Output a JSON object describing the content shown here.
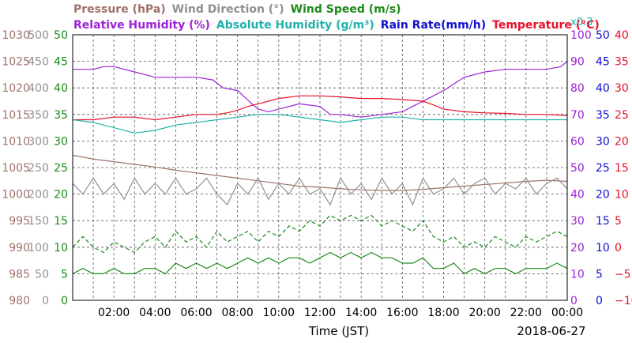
{
  "chart_data": {
    "type": "line",
    "title_row1": [
      {
        "text": "Pressure (hPa)",
        "color": "#A0706A"
      },
      {
        "text": "Wind Direction (°)",
        "color": "#909090"
      },
      {
        "text": "Wind Speed (m/s)",
        "color": "#1A8A1A"
      }
    ],
    "title_row2": [
      {
        "text": "Relative Humidity (%)",
        "color": "#9B22D6"
      },
      {
        "text": "Absolute Humidity (g/m³)",
        "color": "#20B2AA"
      },
      {
        "text": "Rain Rate(mm/h)",
        "color": "#1010D0"
      },
      {
        "text": "Temperature (°C)",
        "color": "#E8102A"
      }
    ],
    "absolute_humidity_scale_note": "x0.3",
    "xlabel": "Time (JST)",
    "date_label": "2018-06-27",
    "x_tick_labels": [
      "02:00",
      "04:00",
      "06:00",
      "08:00",
      "10:00",
      "12:00",
      "14:00",
      "16:00",
      "18:00",
      "20:00",
      "22:00",
      "00:00"
    ],
    "xlim_hours": [
      0,
      24
    ],
    "grid": true,
    "axes": {
      "pressure": {
        "color": "#A0706A",
        "ticks": [
          "1030",
          "1025",
          "1020",
          "1015",
          "1010",
          "1005",
          "1000",
          "995",
          "990",
          "985",
          "980"
        ],
        "ylim": [
          980,
          1030
        ]
      },
      "wind_direction": {
        "color": "#909090",
        "ticks": [
          "500",
          "450",
          "400",
          "350",
          "300",
          "250",
          "200",
          "150",
          "100",
          "50",
          "0"
        ],
        "ylim": [
          0,
          500
        ]
      },
      "wind_speed": {
        "color": "#1A8A1A",
        "ticks": [
          "50",
          "45",
          "40",
          "35",
          "30",
          "25",
          "20",
          "15",
          "10",
          "5",
          "0"
        ],
        "ylim": [
          0,
          50
        ]
      },
      "relative_humidity": {
        "color": "#9B22D6",
        "ticks": [
          "100",
          "90",
          "80",
          "70",
          "60",
          "50",
          "40",
          "30",
          "20",
          "10",
          "0"
        ],
        "ylim": [
          0,
          100
        ]
      },
      "rain_rate": {
        "color": "#1010D0",
        "ticks": [
          "50",
          "45",
          "40",
          "35",
          "30",
          "25",
          "20",
          "15",
          "10",
          "5",
          "0"
        ],
        "ylim": [
          0,
          50
        ]
      },
      "temperature": {
        "color": "#E8102A",
        "ticks": [
          "40",
          "35",
          "30",
          "25",
          "20",
          "15",
          "10",
          "5",
          "0",
          "−5",
          "−10"
        ],
        "ylim": [
          -10,
          40
        ]
      }
    },
    "series": [
      {
        "name": "Relative Humidity",
        "unit": "%",
        "axis": "relative_humidity",
        "color": "#9B22D6",
        "style": "solid",
        "x": [
          0,
          1,
          1.5,
          2,
          3,
          4,
          5,
          6,
          6.8,
          7.3,
          8,
          8.7,
          9,
          9.5,
          10,
          11,
          12,
          12.5,
          13,
          14,
          15,
          16,
          16.5,
          17,
          17.5,
          18,
          19,
          20,
          21,
          22,
          23,
          23.7,
          24
        ],
        "y": [
          87,
          87,
          88,
          88,
          86,
          84,
          84,
          84,
          83,
          80,
          79,
          74,
          72,
          71,
          72,
          74,
          73,
          70,
          70,
          69,
          70,
          71,
          73,
          75,
          77,
          79,
          84,
          86,
          87,
          87,
          87,
          88,
          90
        ]
      },
      {
        "name": "Temperature",
        "unit": "°C",
        "axis": "temperature",
        "color": "#E8102A",
        "style": "solid",
        "x": [
          0,
          1,
          2,
          3,
          4,
          5,
          6,
          7,
          7.5,
          8,
          8.5,
          9,
          9.5,
          10,
          11,
          12,
          13,
          14,
          15,
          16,
          17,
          17.5,
          18,
          19,
          20,
          21,
          22,
          23,
          24
        ],
        "y": [
          24,
          24,
          24.5,
          24.5,
          24,
          24.5,
          25,
          25,
          25.3,
          25.8,
          26.5,
          27,
          27.5,
          28,
          28.5,
          28.5,
          28.3,
          28,
          28,
          27.8,
          27.5,
          26.8,
          26,
          25.5,
          25.3,
          25.2,
          25,
          25,
          24.8
        ]
      },
      {
        "name": "Absolute Humidity",
        "unit": "g/m³ x0.3",
        "axis": "relative_humidity",
        "color": "#20B2AA",
        "style": "solid",
        "x": [
          0,
          1,
          2,
          3,
          4,
          5,
          6,
          7,
          8,
          9,
          10,
          11,
          12,
          13,
          14,
          15,
          16,
          17,
          18,
          19,
          20,
          21,
          22,
          23,
          24
        ],
        "y": [
          68,
          67,
          65,
          63,
          64,
          66,
          67,
          68,
          69,
          70,
          70,
          69,
          68,
          67,
          68,
          69,
          69,
          68,
          68,
          68,
          68,
          68,
          68,
          68,
          68
        ]
      },
      {
        "name": "Pressure",
        "unit": "hPa",
        "axis": "pressure",
        "color": "#A0706A",
        "style": "solid",
        "x": [
          0,
          1,
          2,
          3,
          4,
          5,
          6,
          7,
          8,
          9,
          10,
          11,
          12,
          13,
          14,
          15,
          16,
          17,
          18,
          19,
          20,
          21,
          22,
          23,
          24
        ],
        "y": [
          1007.3,
          1006.6,
          1006.1,
          1005.6,
          1005.1,
          1004.5,
          1004,
          1003.5,
          1003,
          1002.5,
          1002,
          1001.5,
          1001.3,
          1001,
          1000.8,
          1000.7,
          1000.7,
          1000.9,
          1001.2,
          1001.5,
          1001.8,
          1002.1,
          1002.4,
          1002.6,
          1002.4
        ]
      },
      {
        "name": "Wind Direction",
        "unit": "°",
        "axis": "wind_direction",
        "color": "#909090",
        "style": "solid",
        "x": [
          0,
          0.5,
          1,
          1.5,
          2,
          2.5,
          3,
          3.5,
          4,
          4.5,
          5,
          5.5,
          6,
          6.5,
          7,
          7.5,
          8,
          8.5,
          9,
          9.5,
          10,
          10.5,
          11,
          11.5,
          12,
          12.5,
          13,
          13.5,
          14,
          14.5,
          15,
          15.5,
          16,
          16.5,
          17,
          17.5,
          18,
          18.5,
          19,
          19.5,
          20,
          20.5,
          21,
          21.5,
          22,
          22.5,
          23,
          23.5,
          24
        ],
        "y": [
          220,
          200,
          230,
          200,
          220,
          190,
          230,
          200,
          220,
          200,
          230,
          200,
          210,
          230,
          200,
          180,
          220,
          200,
          230,
          190,
          220,
          200,
          230,
          200,
          210,
          180,
          230,
          200,
          220,
          190,
          230,
          200,
          220,
          180,
          230,
          200,
          210,
          230,
          200,
          220,
          230,
          200,
          220,
          210,
          230,
          200,
          220,
          230,
          210
        ]
      },
      {
        "name": "Wind Speed (gust)",
        "unit": "m/s",
        "axis": "wind_speed",
        "color": "#1A8A1A",
        "style": "dashed",
        "x": [
          0,
          0.5,
          1,
          1.5,
          2,
          2.5,
          3,
          3.5,
          4,
          4.5,
          5,
          5.5,
          6,
          6.5,
          7,
          7.5,
          8,
          8.5,
          9,
          9.5,
          10,
          10.5,
          11,
          11.5,
          12,
          12.5,
          13,
          13.5,
          14,
          14.5,
          15,
          15.5,
          16,
          16.5,
          17,
          17.5,
          18,
          18.5,
          19,
          19.5,
          20,
          20.5,
          21,
          21.5,
          22,
          22.5,
          23,
          23.5,
          24
        ],
        "y": [
          10,
          12,
          10,
          9,
          11,
          10,
          9,
          11,
          12,
          10,
          13,
          11,
          12,
          10,
          13,
          11,
          12,
          13,
          11,
          13,
          12,
          14,
          13,
          15,
          14,
          16,
          15,
          16,
          15,
          16,
          14,
          15,
          14,
          13,
          15,
          12,
          11,
          12,
          10,
          11,
          10,
          12,
          11,
          10,
          12,
          11,
          12,
          13,
          12
        ]
      },
      {
        "name": "Wind Speed",
        "unit": "m/s",
        "axis": "wind_speed",
        "color": "#1A8A1A",
        "style": "solid",
        "x": [
          0,
          0.5,
          1,
          1.5,
          2,
          2.5,
          3,
          3.5,
          4,
          4.5,
          5,
          5.5,
          6,
          6.5,
          7,
          7.5,
          8,
          8.5,
          9,
          9.5,
          10,
          10.5,
          11,
          11.5,
          12,
          12.5,
          13,
          13.5,
          14,
          14.5,
          15,
          15.5,
          16,
          16.5,
          17,
          17.5,
          18,
          18.5,
          19,
          19.5,
          20,
          20.5,
          21,
          21.5,
          22,
          22.5,
          23,
          23.5,
          24
        ],
        "y": [
          5,
          6,
          5,
          5,
          6,
          5,
          5,
          6,
          6,
          5,
          7,
          6,
          7,
          6,
          7,
          6,
          7,
          8,
          7,
          8,
          7,
          8,
          8,
          7,
          8,
          9,
          8,
          9,
          8,
          9,
          8,
          8,
          7,
          7,
          8,
          6,
          6,
          7,
          5,
          6,
          5,
          6,
          6,
          5,
          6,
          6,
          6,
          7,
          6
        ]
      }
    ]
  }
}
